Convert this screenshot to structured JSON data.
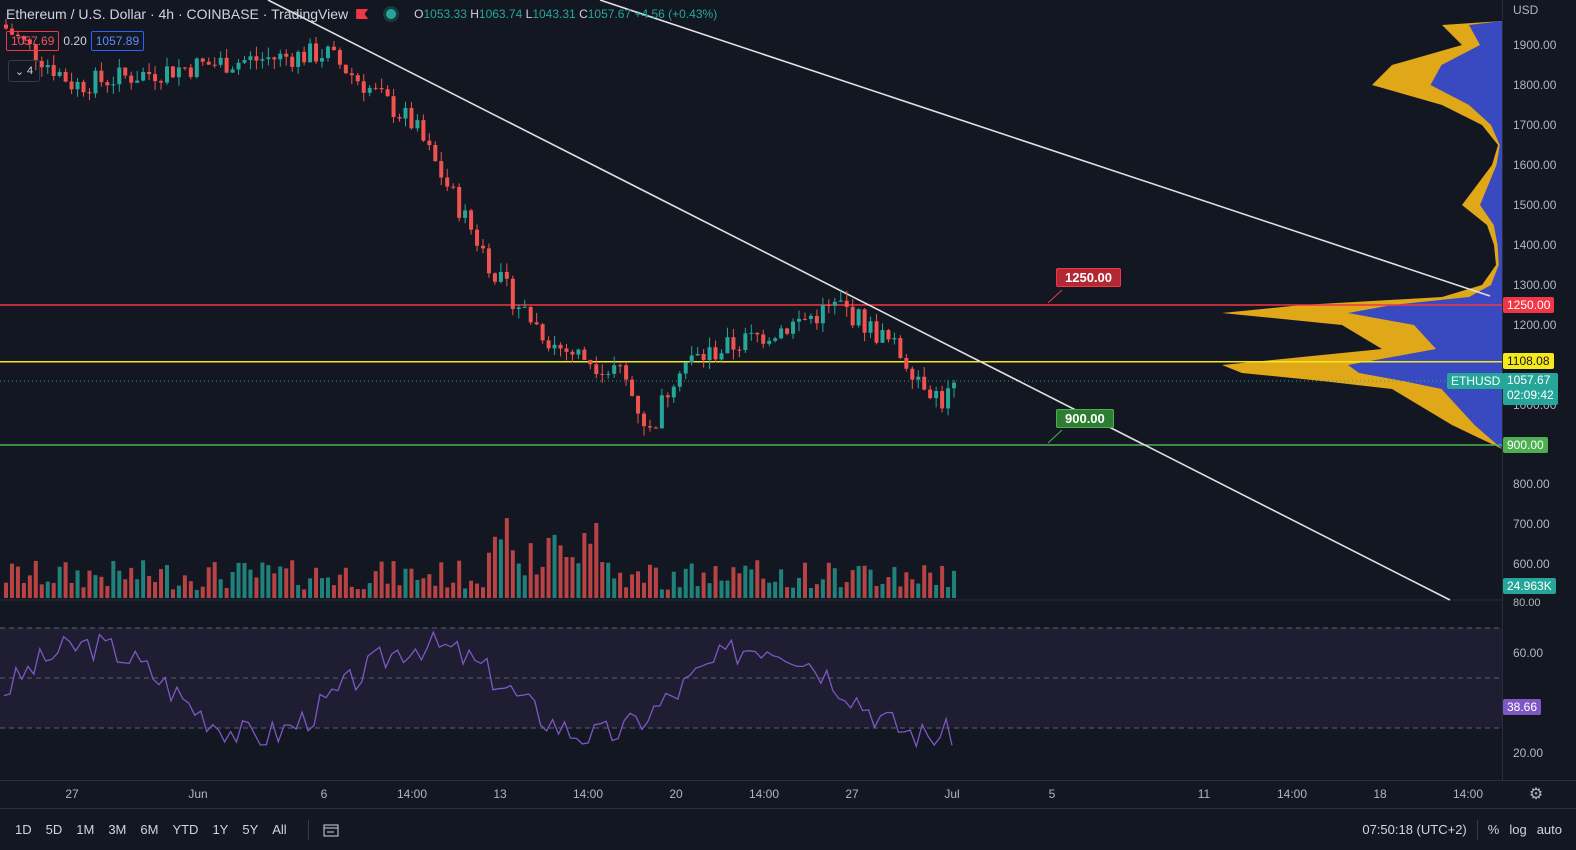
{
  "header": {
    "symbol": "Ethereum / U.S. Dollar",
    "interval": "4h",
    "exchange": "COINBASE",
    "source": "TradingView",
    "open_label": "O",
    "open": "1053.33",
    "high_label": "H",
    "high": "1063.74",
    "low_label": "L",
    "low": "1043.31",
    "close_label": "C",
    "close": "1057.67",
    "change": "+4.56 (+0.43%)"
  },
  "bid": "1057.69",
  "spread": "0.20",
  "ask": "1057.89",
  "indicators_count": "4",
  "price_scale": {
    "currency": "USD",
    "ticks": [
      "1900.00",
      "1800.00",
      "1700.00",
      "1600.00",
      "1500.00",
      "1400.00",
      "1300.00",
      "1200.00",
      "1000.00",
      "800.00",
      "700.00",
      "600.00"
    ],
    "labels": {
      "resistance": "1250.00",
      "mid": "1108.08",
      "symbol": "ETHUSD",
      "current": "1057.67",
      "countdown": "02:09:42",
      "support": "900.00",
      "volume": "24.963K",
      "rsi_value": "38.66"
    }
  },
  "rsi_scale": {
    "ticks": [
      "80.00",
      "60.00",
      "20.00"
    ]
  },
  "annotations": {
    "resistance": "1250.00",
    "support": "900.00"
  },
  "time_axis": [
    "27",
    "Jun",
    "6",
    "14:00",
    "13",
    "14:00",
    "20",
    "14:00",
    "27",
    "Jul",
    "5",
    "11",
    "14:00",
    "18",
    "14:00"
  ],
  "bottom_bar": {
    "ranges": [
      "1D",
      "5D",
      "1M",
      "3M",
      "6M",
      "YTD",
      "1Y",
      "5Y",
      "All"
    ],
    "time": "07:50:18 (UTC+2)",
    "percent": "%",
    "log": "log",
    "auto": "auto"
  },
  "colors": {
    "up": "#26a69a",
    "down": "#ef5350",
    "resistance": "#f23645",
    "mid": "#f5e91c",
    "support": "#4caf50",
    "rsi": "#7e57c2",
    "vp_up": "#f7b718",
    "vp_down": "#2f45c9"
  },
  "chart_data": {
    "type": "candlestick",
    "symbol": "ETHUSD",
    "interval": "4h",
    "price_range": [
      550,
      2000
    ],
    "horizontal_levels": [
      1250.0,
      1108.08,
      900.0
    ],
    "approx_close_path": [
      {
        "date": "May 25",
        "close": 1950
      },
      {
        "date": "May 27",
        "close": 1800
      },
      {
        "date": "Jun 1",
        "close": 1850
      },
      {
        "date": "Jun 6",
        "close": 1880
      },
      {
        "date": "Jun 10",
        "close": 1700
      },
      {
        "date": "Jun 13",
        "close": 1300
      },
      {
        "date": "Jun 15",
        "close": 1150
      },
      {
        "date": "Jun 17",
        "close": 1080
      },
      {
        "date": "Jun 18",
        "close": 930
      },
      {
        "date": "Jun 20",
        "close": 1100
      },
      {
        "date": "Jun 24",
        "close": 1200
      },
      {
        "date": "Jun 26",
        "close": 1250
      },
      {
        "date": "Jun 28",
        "close": 1150
      },
      {
        "date": "Jun 30",
        "close": 1010
      },
      {
        "date": "Jul 1",
        "close": 1057.67
      }
    ],
    "rsi": {
      "range": [
        0,
        100
      ],
      "bands": [
        70,
        50,
        30
      ],
      "last": 38.66
    },
    "volume_last": "24.963K"
  }
}
